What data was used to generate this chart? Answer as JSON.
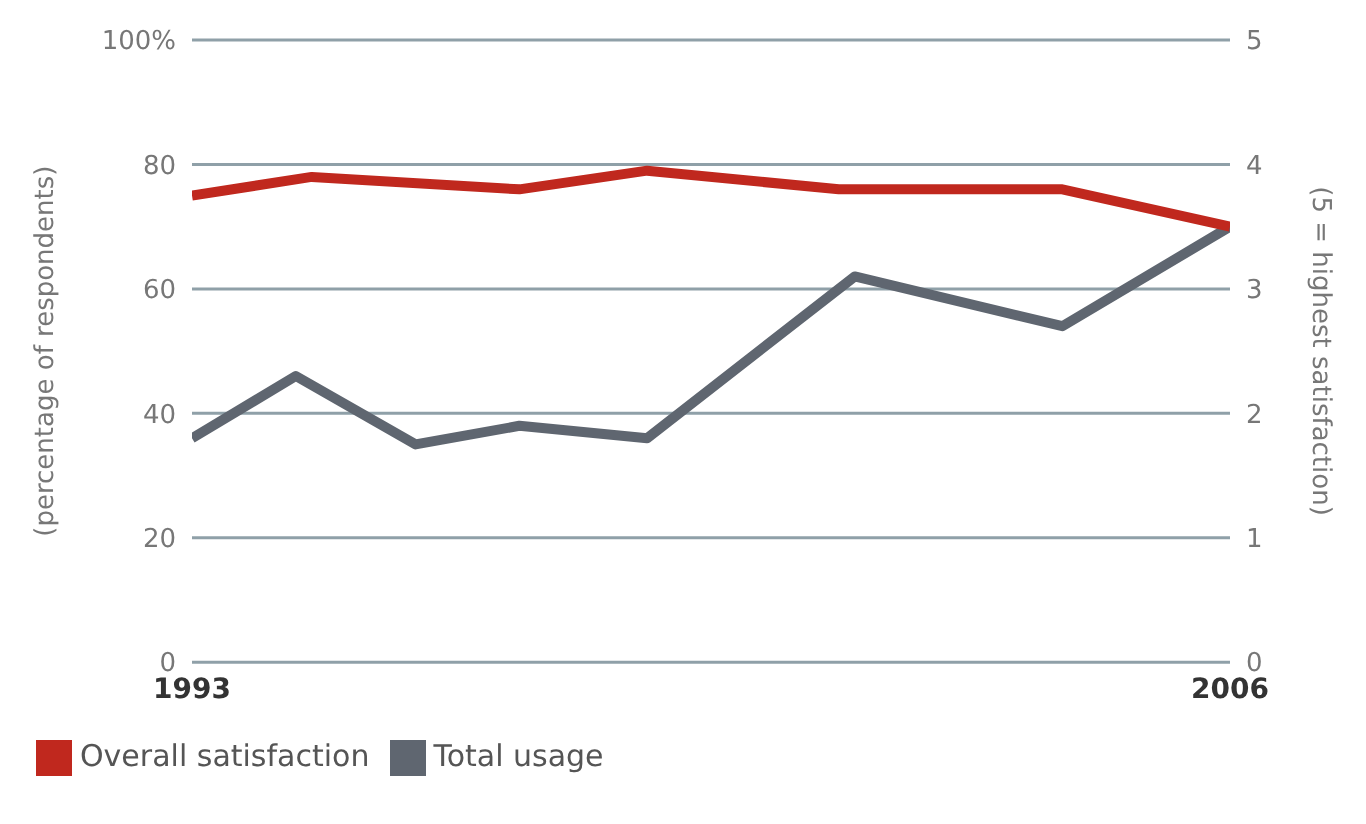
{
  "chart_data": {
    "type": "line",
    "ylabel": "(percentage of respondents)",
    "y2label": "(5 = highest satisfaction)",
    "xlim": [
      1993,
      2006
    ],
    "xticks": [
      1993,
      2006
    ],
    "ylim": [
      0,
      100
    ],
    "yticks": [
      0,
      20,
      40,
      60,
      80,
      {
        "value": 100,
        "label": "100%"
      }
    ],
    "y2lim": [
      0,
      5
    ],
    "y2ticks": [
      0,
      1,
      2,
      3,
      4,
      5
    ],
    "grid": "y",
    "legend": "bottom",
    "marker": "none",
    "line_style": "solid",
    "series": [
      {
        "name": "Total usage",
        "color": "#5f6670",
        "x": [
          1993,
          1994.3,
          1995.8,
          1997.1,
          1998.7,
          2001.3,
          2003.9,
          2006
        ],
        "values": [
          36,
          46,
          35,
          38,
          36,
          62,
          54,
          70
        ]
      },
      {
        "name": "Overall satisfaction",
        "color": "#c0281e",
        "axis": "y2",
        "x": [
          1993,
          1994.5,
          1997.1,
          1998.7,
          2001.1,
          2003.9,
          2006
        ],
        "values": [
          3.75,
          3.9,
          3.8,
          3.95,
          3.8,
          3.8,
          3.5
        ]
      }
    ]
  }
}
